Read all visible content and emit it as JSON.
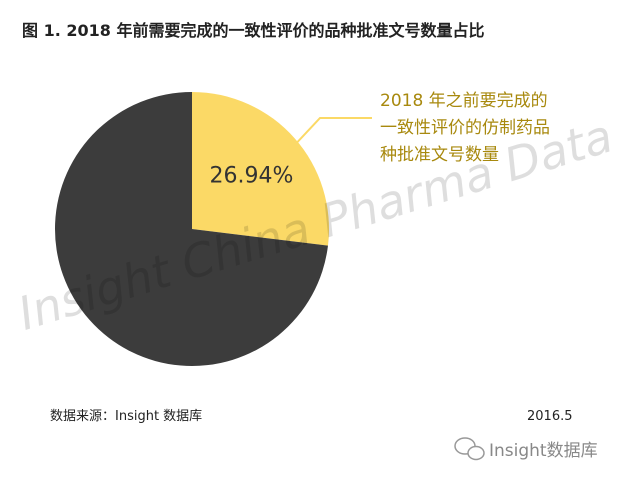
{
  "chart_data": {
    "type": "pie",
    "title": "图 1. 2018 年前需要完成的一致性评价的品种批准文号数量占比",
    "categories": [
      "2018 年之前要完成的\n一致性评价的仿制药品\n种批准文号数量",
      null
    ],
    "values": [
      26.94,
      73.06
    ],
    "value_labels": [
      "26.94%",
      null
    ],
    "colors": [
      "#fbd966",
      "#3c3c3c"
    ],
    "watermark": "Insight China Pharma Data",
    "source": "数据来源：Insight 数据库",
    "date": "2016.5",
    "logo": "Insight数据库"
  }
}
